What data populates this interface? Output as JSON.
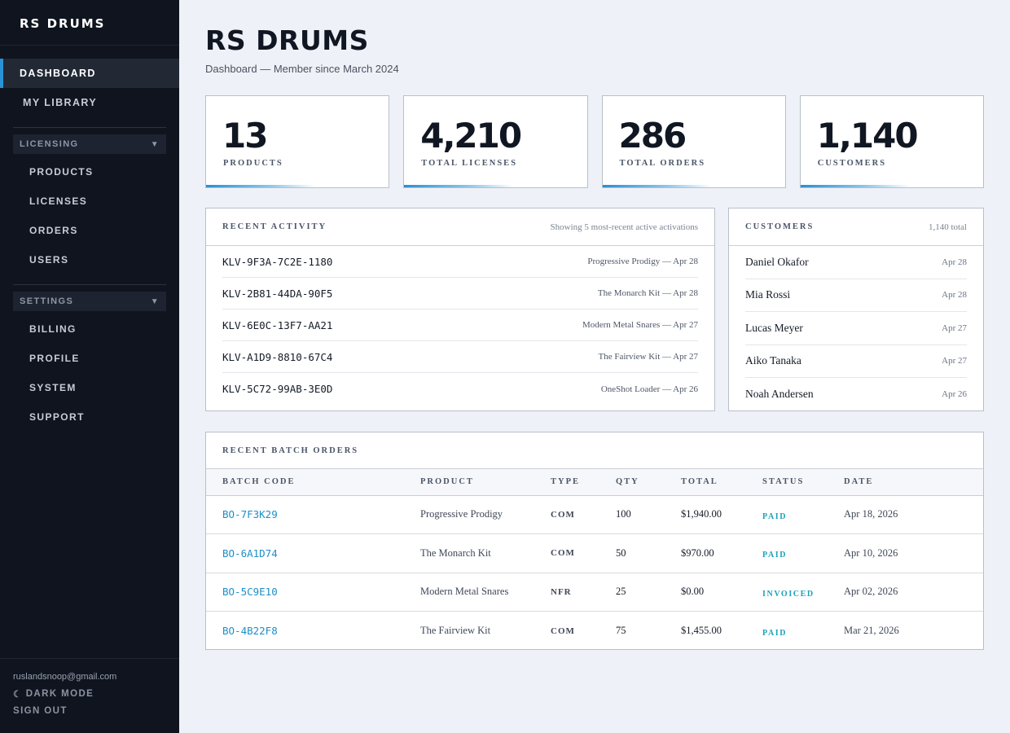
{
  "sidebar": {
    "brand": "RS DRUMS",
    "items": [
      {
        "label": "DASHBOARD"
      },
      {
        "label": "MY LIBRARY"
      }
    ],
    "licensing": {
      "label": "LICENSING",
      "chevron": "▼",
      "items": [
        {
          "label": "PRODUCTS"
        },
        {
          "label": "LICENSES"
        },
        {
          "label": "ORDERS"
        },
        {
          "label": "USERS"
        }
      ]
    },
    "settings": {
      "label": "SETTINGS",
      "chevron": "▼",
      "items": [
        {
          "label": "BILLING"
        },
        {
          "label": "PROFILE"
        },
        {
          "label": "SYSTEM"
        },
        {
          "label": "SUPPORT"
        }
      ]
    },
    "footer": {
      "email": "ruslandsnoop@gmail.com",
      "dark_mode_icon": "☾",
      "dark_mode": "DARK MODE",
      "sign_out": "SIGN OUT"
    }
  },
  "header": {
    "title": "RS DRUMS",
    "subtitle": "Dashboard — Member since March 2024"
  },
  "stats": [
    {
      "value": "13",
      "label": "PRODUCTS"
    },
    {
      "value": "4,210",
      "label": "TOTAL LICENSES"
    },
    {
      "value": "286",
      "label": "TOTAL ORDERS"
    },
    {
      "value": "1,140",
      "label": "CUSTOMERS"
    }
  ],
  "activity": {
    "title": "RECENT ACTIVITY",
    "meta": "Showing 5 most-recent active activations",
    "rows": [
      {
        "code": "KLV-9F3A-7C2E-1180",
        "desc": "Progressive Prodigy — Apr 28"
      },
      {
        "code": "KLV-2B81-44DA-90F5",
        "desc": "The Monarch Kit — Apr 28"
      },
      {
        "code": "KLV-6E0C-13F7-AA21",
        "desc": "Modern Metal Snares — Apr 27"
      },
      {
        "code": "KLV-A1D9-8810-67C4",
        "desc": "The Fairview Kit — Apr 27"
      },
      {
        "code": "KLV-5C72-99AB-3E0D",
        "desc": "OneShot Loader — Apr 26"
      }
    ]
  },
  "customers": {
    "title": "CUSTOMERS",
    "meta": "1,140 total",
    "rows": [
      {
        "name": "Daniel Okafor",
        "date": "Apr 28"
      },
      {
        "name": "Mia Rossi",
        "date": "Apr 28"
      },
      {
        "name": "Lucas Meyer",
        "date": "Apr 27"
      },
      {
        "name": "Aiko Tanaka",
        "date": "Apr 27"
      },
      {
        "name": "Noah Andersen",
        "date": "Apr 26"
      }
    ]
  },
  "orders": {
    "title": "RECENT BATCH ORDERS",
    "columns": {
      "code": "BATCH CODE",
      "product": "PRODUCT",
      "type": "TYPE",
      "qty": "QTY",
      "total": "TOTAL",
      "status": "STATUS",
      "date": "DATE"
    },
    "rows": [
      {
        "code": "BO-7F3K29",
        "product": "Progressive Prodigy",
        "type": "COM",
        "qty": "100",
        "total": "$1,940.00",
        "status": "PAID",
        "date": "Apr 18, 2026"
      },
      {
        "code": "BO-6A1D74",
        "product": "The Monarch Kit",
        "type": "COM",
        "qty": "50",
        "total": "$970.00",
        "status": "PAID",
        "date": "Apr 10, 2026"
      },
      {
        "code": "BO-5C9E10",
        "product": "Modern Metal Snares",
        "type": "NFR",
        "qty": "25",
        "total": "$0.00",
        "status": "INVOICED",
        "date": "Apr 02, 2026"
      },
      {
        "code": "BO-4B22F8",
        "product": "The Fairview Kit",
        "type": "COM",
        "qty": "75",
        "total": "$1,455.00",
        "status": "PAID",
        "date": "Mar 21, 2026"
      }
    ]
  },
  "colors": {
    "accent": "#2a93d5",
    "status": "#19a3b8",
    "link": "#1f8fc6",
    "sidebar_bg": "#0f141e",
    "page_bg": "#eef1f7"
  }
}
